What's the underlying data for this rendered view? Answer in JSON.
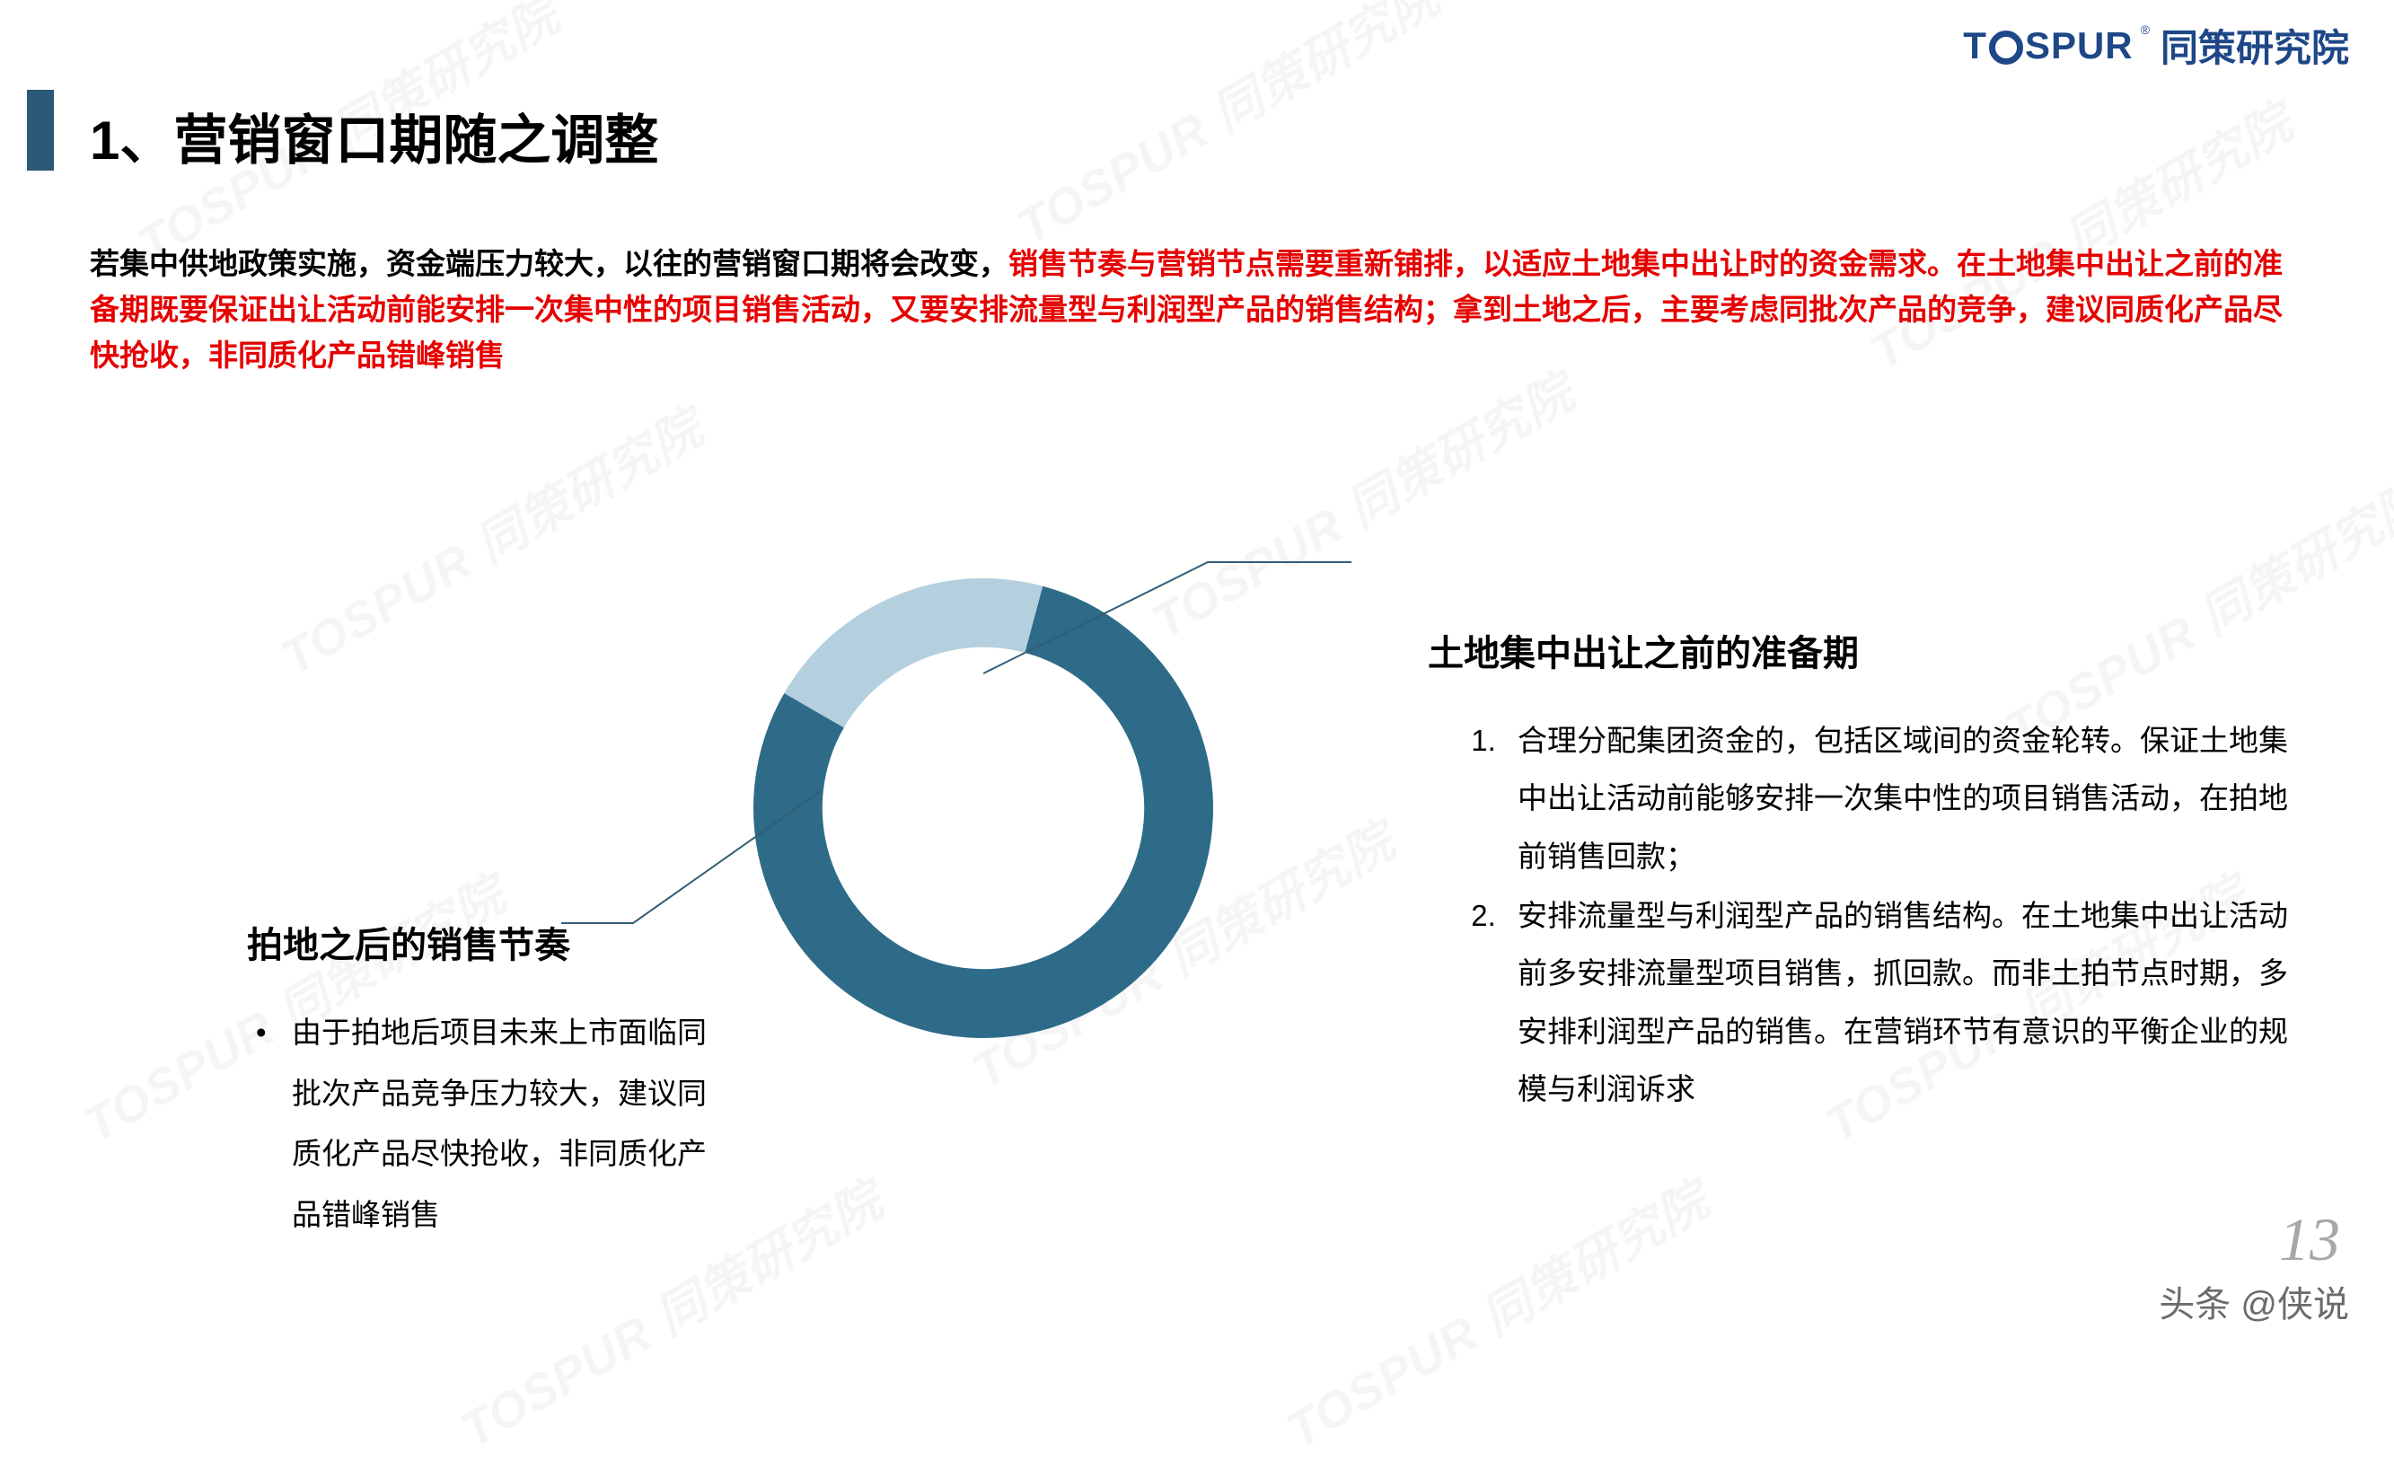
{
  "logo": {
    "latin": "TOSPUR",
    "cn": "同策研究院",
    "reg": "®"
  },
  "title": "1、营销窗口期随之调整",
  "intro": {
    "black": "若集中供地政策实施，资金端压力较大，以往的营销窗口期将会改变，",
    "red": "销售节奏与营销节点需要重新铺排，以适应土地集中出让时的资金需求。在土地集中出让之前的准备期既要保证出让活动前能安排一次集中性的项目销售活动，又要安排流量型与利润型产品的销售结构；拿到土地之后，主要考虑同批次产品的竞争，建议同质化产品尽快抢收，非同质化产品错峰销售"
  },
  "ring": {
    "type": "donut",
    "size": 520,
    "inner_ratio": 0.7,
    "segments": [
      {
        "start_deg": -60,
        "end_deg": 15,
        "color": "#b4cfdd"
      },
      {
        "start_deg": 15,
        "end_deg": 300,
        "color": "#2d6b89"
      }
    ],
    "background": "#ffffff"
  },
  "right": {
    "heading": "土地集中出让之前的准备期",
    "items": [
      "合理分配集团资金的，包括区域间的资金轮转。保证土地集中出让活动前能够安排一次集中性的项目销售活动，在拍地前销售回款；",
      "安排流量型与利润型产品的销售结构。在土地集中出让活动前多安排流量型项目销售，抓回款。而非土拍节点时期，多安排利润型产品的销售。在营销环节有意识的平衡企业的规模与利润诉求"
    ]
  },
  "left": {
    "heading": "拍地之后的销售节奏",
    "body": "由于拍地后项目未来上市面临同批次产品竞争压力较大，建议同质化产品尽快抢收，非同质化产品错峰销售"
  },
  "footer": {
    "credit": "头条 @侠说",
    "page": "13"
  },
  "watermark_text": "TOSPUR 同策研究院",
  "colors": {
    "accent": "#2d5978",
    "logo": "#1e4788",
    "red": "#e60000",
    "ring_light": "#b4cfdd",
    "ring_dark": "#2d6b89",
    "leader": "#335d73"
  }
}
